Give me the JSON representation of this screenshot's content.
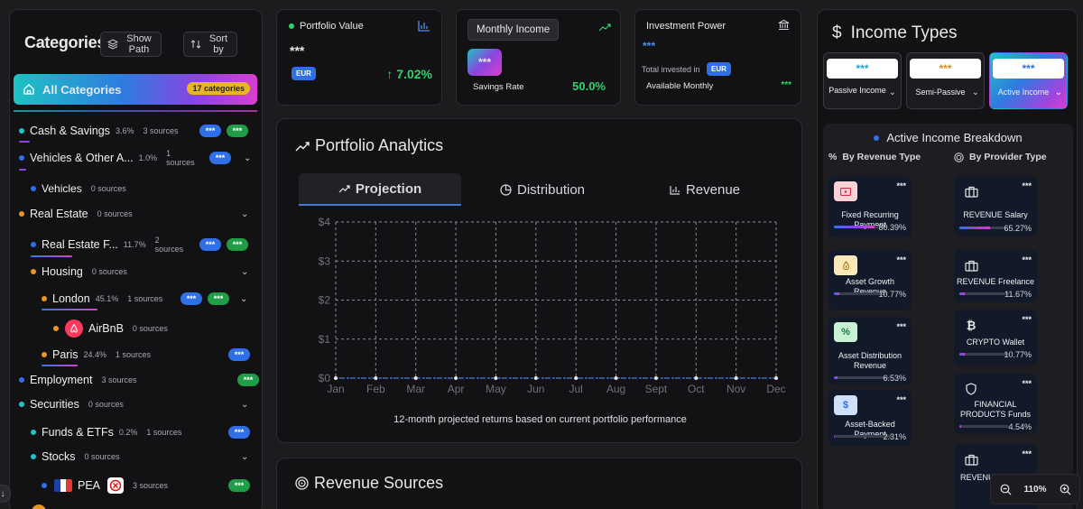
{
  "categories": {
    "title": "Categories",
    "show_path_label": "Show Path",
    "sort_by_label": "Sort by",
    "all_label": "All Categories",
    "all_count": "17 categories",
    "items": [
      {
        "name": "Cash & Savings",
        "pct": "3.6%",
        "sources": "3 sources",
        "badge1": "***",
        "badge2": "***"
      },
      {
        "name": "Vehicles & Other A...",
        "pct": "1.0%",
        "sources": "1 sources",
        "badge1": "***"
      },
      {
        "name": "Vehicles",
        "sources": "0 sources"
      },
      {
        "name": "Real Estate",
        "sources": "0 sources"
      },
      {
        "name": "Real Estate F...",
        "pct": "11.7%",
        "sources": "2 sources",
        "badge1": "***",
        "badge2": "***"
      },
      {
        "name": "Housing",
        "sources": "0 sources"
      },
      {
        "name": "London",
        "pct": "45.1%",
        "sources": "1 sources",
        "badge1": "***",
        "badge2": "***"
      },
      {
        "name": "AirBnB",
        "sources": "0 sources"
      },
      {
        "name": "Paris",
        "pct": "24.4%",
        "sources": "1 sources",
        "badge1": "***"
      },
      {
        "name": "Employment",
        "sources": "3 sources",
        "badge2": "***"
      },
      {
        "name": "Securities",
        "sources": "0 sources"
      },
      {
        "name": "Funds & ETFs",
        "pct": "0.2%",
        "sources": "1 sources",
        "badge1": "***"
      },
      {
        "name": "Stocks",
        "sources": "0 sources"
      },
      {
        "name": "PEA",
        "sources": "3 sources",
        "badge2": "***"
      }
    ]
  },
  "cards": {
    "portfolio": {
      "label": "Portfolio Value",
      "value": "***",
      "currency": "EUR",
      "change": "7.02%",
      "change_arrow": "↑"
    },
    "monthly": {
      "label": "Monthly Income",
      "value": "***",
      "savings_label": "Savings Rate",
      "savings_value": "50.0%"
    },
    "investment": {
      "label": "Investment Power",
      "value": "***",
      "invested_label": "Total invested in",
      "currency": "EUR",
      "available_label": "Available Monthly",
      "available_value": "***"
    }
  },
  "analytics": {
    "title": "Portfolio Analytics",
    "tabs": [
      "Projection",
      "Distribution",
      "Revenue"
    ],
    "caption": "12-month projected returns based on current portfolio performance"
  },
  "chart_data": {
    "type": "line",
    "x": [
      "Jan",
      "Feb",
      "Mar",
      "Apr",
      "May",
      "Jun",
      "Jul",
      "Aug",
      "Sept",
      "Oct",
      "Nov",
      "Dec"
    ],
    "series": [
      {
        "values": [
          0,
          0,
          0,
          0,
          0,
          0,
          0,
          0,
          0,
          0,
          0,
          0
        ]
      }
    ],
    "ytick_labels": [
      "$0",
      "$1",
      "$2",
      "$3",
      "$4"
    ],
    "ylim": [
      0,
      4
    ],
    "grid": true
  },
  "revenue": {
    "title": "Revenue Sources"
  },
  "income": {
    "title": "Income Types",
    "dollar": "$",
    "types": [
      {
        "name": "Passive Income",
        "value": "***",
        "color": "#1aa7c9"
      },
      {
        "name": "Semi-Passive",
        "value": "***",
        "color": "#e08a1e"
      },
      {
        "name": "Active Income",
        "value": "***",
        "color": "#2f6fe8"
      }
    ],
    "breakdown_title": "Active Income Breakdown",
    "by_revenue_label": "By Revenue Type",
    "by_provider_label": "By Provider Type",
    "revenue_types": [
      {
        "name": "Fixed Recurring Payment",
        "value": "***",
        "pct": "80.39%",
        "share": 80.39,
        "icon": "card-icon",
        "icon_bg": "#fbd3d6"
      },
      {
        "name": "Asset Growth Revenue",
        "value": "***",
        "pct": "10.77%",
        "share": 10.77,
        "icon": "growth-icon",
        "icon_bg": "#fbe8b8"
      },
      {
        "name": "Asset Distribution Revenue",
        "value": "***",
        "pct": "6.53%",
        "share": 6.53,
        "icon": "percent-icon",
        "icon_bg": "#c9f1d6"
      },
      {
        "name": "Asset-Backed Payment",
        "value": "***",
        "pct": "2.31%",
        "share": 2.31,
        "icon": "dollar-icon",
        "icon_bg": "#cfe0fb"
      }
    ],
    "provider_types": [
      {
        "name": "REVENUE Salary",
        "value": "***",
        "pct": "65.27%",
        "share": 65.27,
        "icon": "briefcase-icon"
      },
      {
        "name": "REVENUE Freelance",
        "value": "***",
        "pct": "11.67%",
        "share": 11.67,
        "icon": "briefcase-icon"
      },
      {
        "name": "CRYPTO Wallet",
        "value": "***",
        "pct": "10.77%",
        "share": 10.77,
        "icon": "bitcoin-icon"
      },
      {
        "name": "FINANCIAL PRODUCTS Funds",
        "value": "***",
        "pct": "4.54%",
        "share": 4.54,
        "icon": "shield-icon"
      },
      {
        "name": "REVENUE Social...",
        "value": "***",
        "icon": "briefcase-icon"
      }
    ]
  },
  "zoom": {
    "value": "110%"
  }
}
